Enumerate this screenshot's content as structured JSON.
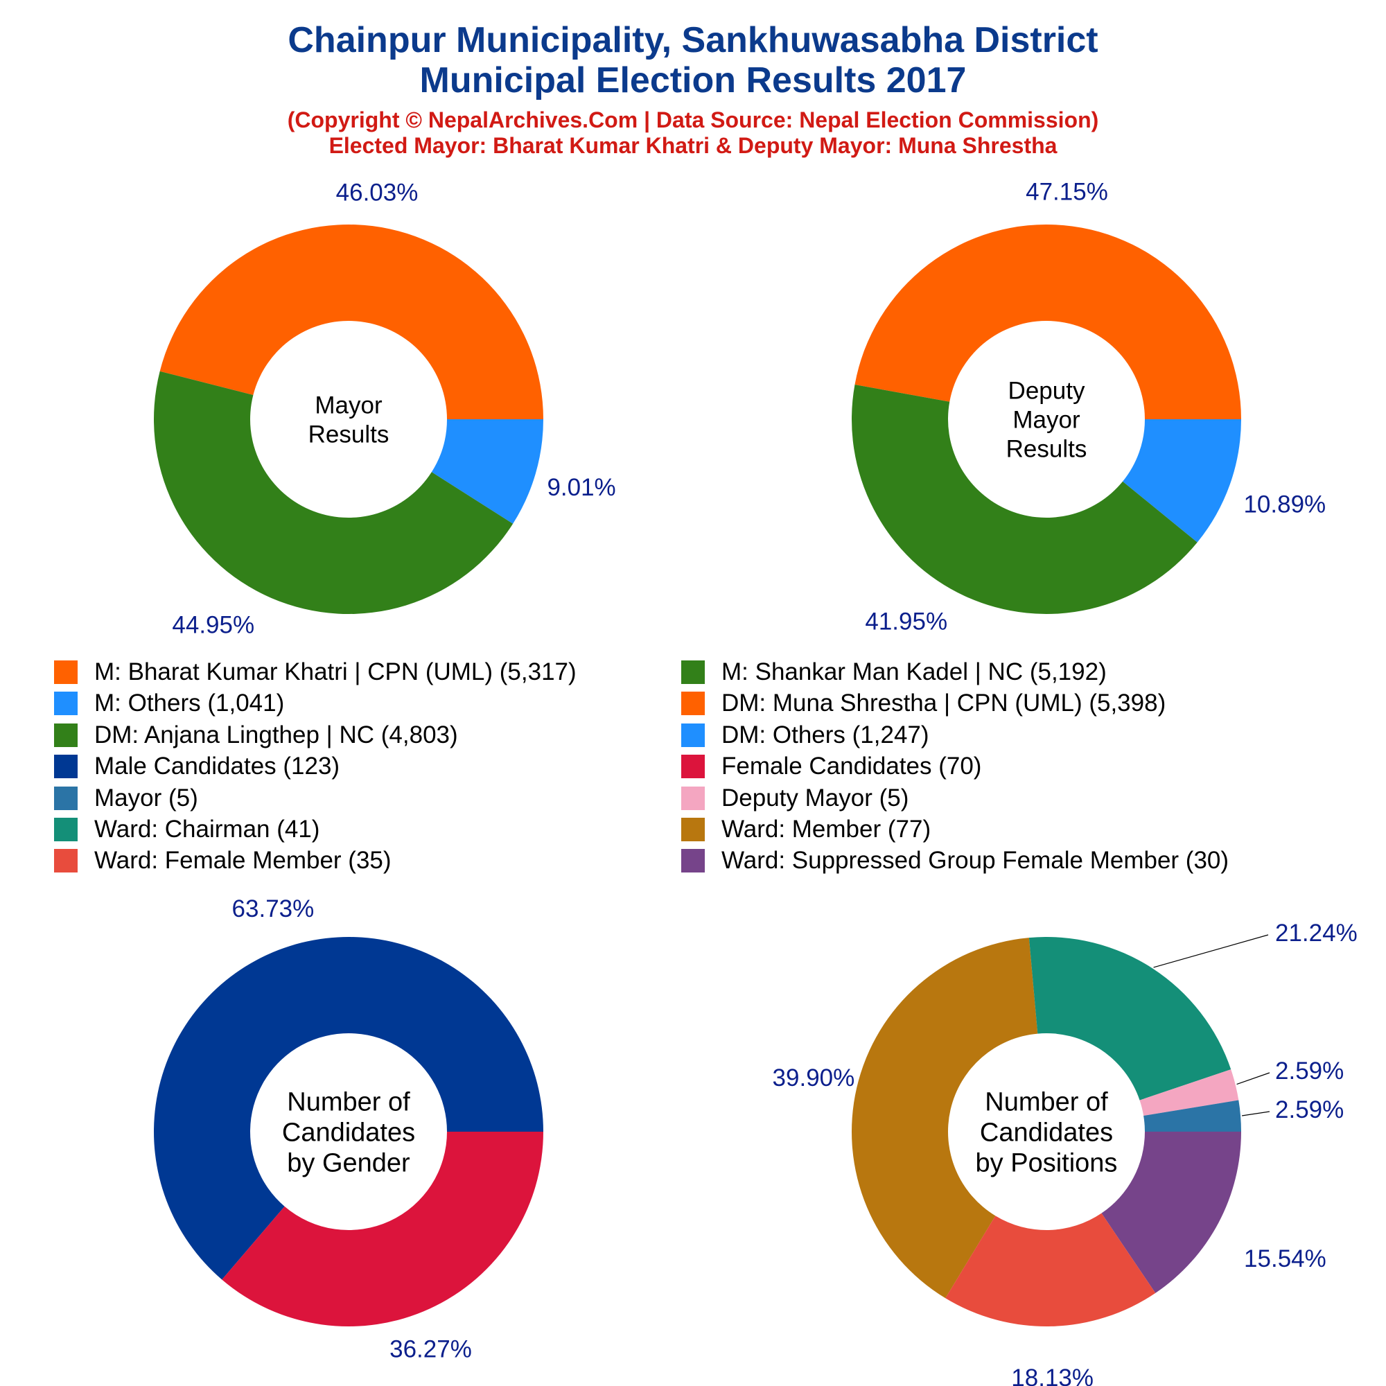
{
  "title_line1": "Chainpur Municipality, Sankhuwasabha District",
  "title_line2": "Municipal Election Results 2017",
  "subtitle_line1": "(Copyright © NepalArchives.Com | Data Source: Nepal Election Commission)",
  "subtitle_line2": "Elected Mayor: Bharat Kumar Khatri & Deputy Mayor: Muna Shrestha",
  "legend": [
    {
      "label": "M: Bharat Kumar Khatri | CPN (UML) (5,317)",
      "color": "#ff6100"
    },
    {
      "label": "M: Shankar Man Kadel | NC (5,192)",
      "color": "#328019"
    },
    {
      "label": "M: Others (1,041)",
      "color": "#1f8fff"
    },
    {
      "label": "DM: Muna Shrestha | CPN (UML) (5,398)",
      "color": "#ff6100"
    },
    {
      "label": "DM: Anjana Lingthep | NC (4,803)",
      "color": "#328019"
    },
    {
      "label": "DM: Others (1,247)",
      "color": "#1f8fff"
    },
    {
      "label": "Male Candidates (123)",
      "color": "#003893"
    },
    {
      "label": "Female Candidates (70)",
      "color": "#dc143c"
    },
    {
      "label": "Mayor (5)",
      "color": "#2b74a6"
    },
    {
      "label": "Deputy Mayor (5)",
      "color": "#f4a6c1"
    },
    {
      "label": "Ward: Chairman (41)",
      "color": "#148f78"
    },
    {
      "label": "Ward: Member (77)",
      "color": "#b8770f"
    },
    {
      "label": "Ward: Female Member (35)",
      "color": "#e84c3d"
    },
    {
      "label": "Ward: Suppressed Group Female Member (30)",
      "color": "#76448a"
    }
  ],
  "chart_data": [
    {
      "type": "pie",
      "center_label": [
        "Mayor",
        "Results"
      ],
      "slices": [
        {
          "name": "M: Bharat Kumar Khatri | CPN (UML)",
          "value": 5317,
          "pct_label": "46.03%",
          "color": "#ff6100"
        },
        {
          "name": "M: Others",
          "value": 1041,
          "pct_label": "9.01%",
          "color": "#1f8fff"
        },
        {
          "name": "M: Shankar Man Kadel | NC",
          "value": 5192,
          "pct_label": "44.95%",
          "color": "#328019"
        }
      ]
    },
    {
      "type": "pie",
      "center_label": [
        "Deputy",
        "Mayor",
        "Results"
      ],
      "slices": [
        {
          "name": "DM: Muna Shrestha | CPN (UML)",
          "value": 5398,
          "pct_label": "47.15%",
          "color": "#ff6100"
        },
        {
          "name": "DM: Others",
          "value": 1247,
          "pct_label": "10.89%",
          "color": "#1f8fff"
        },
        {
          "name": "DM: Anjana Lingthep | NC",
          "value": 4803,
          "pct_label": "41.95%",
          "color": "#328019"
        }
      ]
    },
    {
      "type": "pie",
      "center_label": [
        "Number of",
        "Candidates",
        "by Gender"
      ],
      "slices": [
        {
          "name": "Male Candidates",
          "value": 123,
          "pct_label": "63.73%",
          "color": "#003893"
        },
        {
          "name": "Female Candidates",
          "value": 70,
          "pct_label": "36.27%",
          "color": "#dc143c"
        }
      ]
    },
    {
      "type": "pie",
      "center_label": [
        "Number of",
        "Candidates",
        "by Positions"
      ],
      "slices": [
        {
          "name": "Ward: Member",
          "value": 77,
          "pct_label": "39.90%",
          "color": "#b8770f"
        },
        {
          "name": "Ward: Chairman",
          "value": 41,
          "pct_label": "21.24%",
          "color": "#148f78"
        },
        {
          "name": "Deputy Mayor",
          "value": 5,
          "pct_label": "2.59%",
          "color": "#f4a6c1"
        },
        {
          "name": "Mayor",
          "value": 5,
          "pct_label": "2.59%",
          "color": "#2b74a6"
        },
        {
          "name": "Ward: Suppressed Group Female Member",
          "value": 30,
          "pct_label": "15.54%",
          "color": "#76448a"
        },
        {
          "name": "Ward: Female Member",
          "value": 35,
          "pct_label": "18.13%",
          "color": "#e84c3d"
        }
      ]
    }
  ]
}
